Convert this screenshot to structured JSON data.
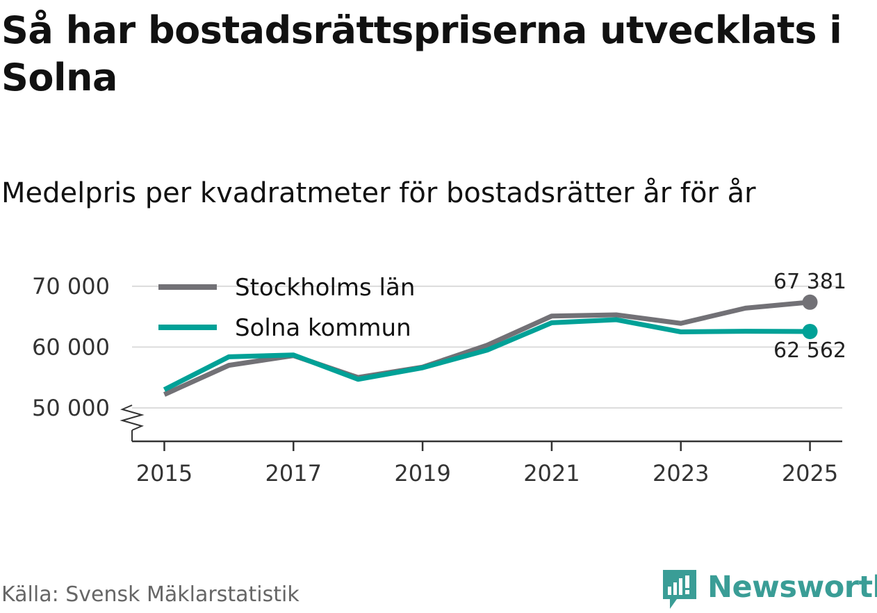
{
  "title": "Så har bostadsrättspriserna utvecklats i Solna",
  "subtitle": "Medelpris per kvadratmeter för bostadsrätter år för år",
  "source": "Källa: Svensk Mäklarstatistik",
  "brand": {
    "name": "Newsworthy",
    "color": "#3a9d96",
    "icon": "newsworthy-logo-icon"
  },
  "chart_data": {
    "type": "line",
    "title": "Så har bostadsrättspriserna utvecklats i Solna",
    "subtitle": "Medelpris per kvadratmeter för bostadsrätter år för år",
    "xlabel": "",
    "ylabel": "",
    "x": [
      2015,
      2016,
      2017,
      2018,
      2019,
      2020,
      2021,
      2022,
      2023,
      2024,
      2025
    ],
    "xticks": [
      2015,
      2017,
      2019,
      2021,
      2023,
      2025
    ],
    "xtick_labels": [
      "2015",
      "2017",
      "2019",
      "2021",
      "2023",
      "2025"
    ],
    "yticks": [
      50000,
      60000,
      70000
    ],
    "ytick_labels": [
      "50 000",
      "60 000",
      "70 000"
    ],
    "ylim": [
      44500,
      72500
    ],
    "xlim": [
      2014.5,
      2025.5
    ],
    "axis_break": true,
    "grid": true,
    "legend_position": "top-left",
    "series": [
      {
        "name": "Stockholms län",
        "color": "#727176",
        "values": [
          52200,
          57000,
          58600,
          55000,
          56700,
          60300,
          65100,
          65300,
          63900,
          66400,
          67381
        ],
        "end_label": "67 381"
      },
      {
        "name": "Solna kommun",
        "color": "#00a197",
        "values": [
          53000,
          58400,
          58700,
          54700,
          56600,
          59500,
          64000,
          64500,
          62500,
          62600,
          62562
        ],
        "end_label": "62 562"
      }
    ]
  }
}
